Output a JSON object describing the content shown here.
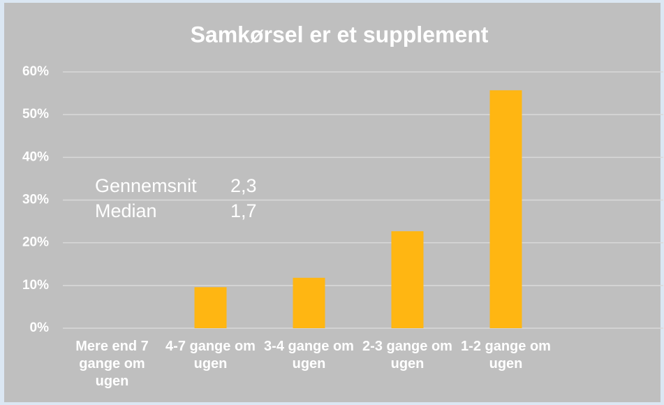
{
  "chart_data": {
    "type": "bar",
    "title": "Samkørsel er et supplement",
    "categories": [
      "Mere end 7 gange om ugen",
      "4-7 gange om ugen",
      "3-4 gange om ugen",
      "2-3 gange om ugen",
      "1-2 gange om ugen",
      null
    ],
    "values": [
      0,
      9.6,
      11.8,
      22.7,
      55.7,
      null
    ],
    "color": "#ffb612",
    "ylim": [
      0,
      60
    ],
    "yticks": [
      {
        "value": 0,
        "label": "0%"
      },
      {
        "value": 10,
        "label": "10%"
      },
      {
        "value": 20,
        "label": "20%"
      },
      {
        "value": 30,
        "label": "30%"
      },
      {
        "value": 40,
        "label": "40%"
      },
      {
        "value": 50,
        "label": "50%"
      },
      {
        "value": 60,
        "label": "60%"
      }
    ],
    "grid": true,
    "annotations": [
      {
        "label": "Gennemsnit",
        "value": "2,3"
      },
      {
        "label": "Median",
        "value": "1,7"
      }
    ]
  }
}
